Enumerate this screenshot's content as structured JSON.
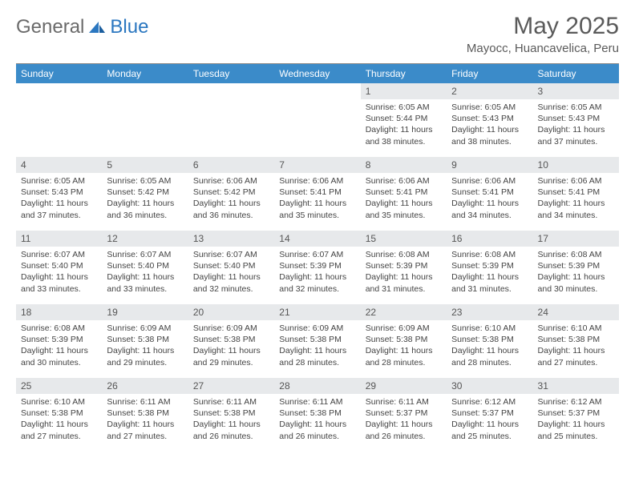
{
  "brand": {
    "part1": "General",
    "part2": "Blue"
  },
  "colors": {
    "header_bg": "#3b8bc9",
    "header_text": "#ffffff",
    "daynum_bg": "#e7e9eb",
    "body_text": "#444444",
    "brand_gray": "#6a6a6a",
    "brand_blue": "#2b77c0"
  },
  "title": "May 2025",
  "location": "Mayocc, Huancavelica, Peru",
  "days_of_week": [
    "Sunday",
    "Monday",
    "Tuesday",
    "Wednesday",
    "Thursday",
    "Friday",
    "Saturday"
  ],
  "weeks": [
    [
      {
        "num": "",
        "lines": []
      },
      {
        "num": "",
        "lines": []
      },
      {
        "num": "",
        "lines": []
      },
      {
        "num": "",
        "lines": []
      },
      {
        "num": "1",
        "lines": [
          "Sunrise: 6:05 AM",
          "Sunset: 5:44 PM",
          "Daylight: 11 hours and 38 minutes."
        ]
      },
      {
        "num": "2",
        "lines": [
          "Sunrise: 6:05 AM",
          "Sunset: 5:43 PM",
          "Daylight: 11 hours and 38 minutes."
        ]
      },
      {
        "num": "3",
        "lines": [
          "Sunrise: 6:05 AM",
          "Sunset: 5:43 PM",
          "Daylight: 11 hours and 37 minutes."
        ]
      }
    ],
    [
      {
        "num": "4",
        "lines": [
          "Sunrise: 6:05 AM",
          "Sunset: 5:43 PM",
          "Daylight: 11 hours and 37 minutes."
        ]
      },
      {
        "num": "5",
        "lines": [
          "Sunrise: 6:05 AM",
          "Sunset: 5:42 PM",
          "Daylight: 11 hours and 36 minutes."
        ]
      },
      {
        "num": "6",
        "lines": [
          "Sunrise: 6:06 AM",
          "Sunset: 5:42 PM",
          "Daylight: 11 hours and 36 minutes."
        ]
      },
      {
        "num": "7",
        "lines": [
          "Sunrise: 6:06 AM",
          "Sunset: 5:41 PM",
          "Daylight: 11 hours and 35 minutes."
        ]
      },
      {
        "num": "8",
        "lines": [
          "Sunrise: 6:06 AM",
          "Sunset: 5:41 PM",
          "Daylight: 11 hours and 35 minutes."
        ]
      },
      {
        "num": "9",
        "lines": [
          "Sunrise: 6:06 AM",
          "Sunset: 5:41 PM",
          "Daylight: 11 hours and 34 minutes."
        ]
      },
      {
        "num": "10",
        "lines": [
          "Sunrise: 6:06 AM",
          "Sunset: 5:41 PM",
          "Daylight: 11 hours and 34 minutes."
        ]
      }
    ],
    [
      {
        "num": "11",
        "lines": [
          "Sunrise: 6:07 AM",
          "Sunset: 5:40 PM",
          "Daylight: 11 hours and 33 minutes."
        ]
      },
      {
        "num": "12",
        "lines": [
          "Sunrise: 6:07 AM",
          "Sunset: 5:40 PM",
          "Daylight: 11 hours and 33 minutes."
        ]
      },
      {
        "num": "13",
        "lines": [
          "Sunrise: 6:07 AM",
          "Sunset: 5:40 PM",
          "Daylight: 11 hours and 32 minutes."
        ]
      },
      {
        "num": "14",
        "lines": [
          "Sunrise: 6:07 AM",
          "Sunset: 5:39 PM",
          "Daylight: 11 hours and 32 minutes."
        ]
      },
      {
        "num": "15",
        "lines": [
          "Sunrise: 6:08 AM",
          "Sunset: 5:39 PM",
          "Daylight: 11 hours and 31 minutes."
        ]
      },
      {
        "num": "16",
        "lines": [
          "Sunrise: 6:08 AM",
          "Sunset: 5:39 PM",
          "Daylight: 11 hours and 31 minutes."
        ]
      },
      {
        "num": "17",
        "lines": [
          "Sunrise: 6:08 AM",
          "Sunset: 5:39 PM",
          "Daylight: 11 hours and 30 minutes."
        ]
      }
    ],
    [
      {
        "num": "18",
        "lines": [
          "Sunrise: 6:08 AM",
          "Sunset: 5:39 PM",
          "Daylight: 11 hours and 30 minutes."
        ]
      },
      {
        "num": "19",
        "lines": [
          "Sunrise: 6:09 AM",
          "Sunset: 5:38 PM",
          "Daylight: 11 hours and 29 minutes."
        ]
      },
      {
        "num": "20",
        "lines": [
          "Sunrise: 6:09 AM",
          "Sunset: 5:38 PM",
          "Daylight: 11 hours and 29 minutes."
        ]
      },
      {
        "num": "21",
        "lines": [
          "Sunrise: 6:09 AM",
          "Sunset: 5:38 PM",
          "Daylight: 11 hours and 28 minutes."
        ]
      },
      {
        "num": "22",
        "lines": [
          "Sunrise: 6:09 AM",
          "Sunset: 5:38 PM",
          "Daylight: 11 hours and 28 minutes."
        ]
      },
      {
        "num": "23",
        "lines": [
          "Sunrise: 6:10 AM",
          "Sunset: 5:38 PM",
          "Daylight: 11 hours and 28 minutes."
        ]
      },
      {
        "num": "24",
        "lines": [
          "Sunrise: 6:10 AM",
          "Sunset: 5:38 PM",
          "Daylight: 11 hours and 27 minutes."
        ]
      }
    ],
    [
      {
        "num": "25",
        "lines": [
          "Sunrise: 6:10 AM",
          "Sunset: 5:38 PM",
          "Daylight: 11 hours and 27 minutes."
        ]
      },
      {
        "num": "26",
        "lines": [
          "Sunrise: 6:11 AM",
          "Sunset: 5:38 PM",
          "Daylight: 11 hours and 27 minutes."
        ]
      },
      {
        "num": "27",
        "lines": [
          "Sunrise: 6:11 AM",
          "Sunset: 5:38 PM",
          "Daylight: 11 hours and 26 minutes."
        ]
      },
      {
        "num": "28",
        "lines": [
          "Sunrise: 6:11 AM",
          "Sunset: 5:38 PM",
          "Daylight: 11 hours and 26 minutes."
        ]
      },
      {
        "num": "29",
        "lines": [
          "Sunrise: 6:11 AM",
          "Sunset: 5:37 PM",
          "Daylight: 11 hours and 26 minutes."
        ]
      },
      {
        "num": "30",
        "lines": [
          "Sunrise: 6:12 AM",
          "Sunset: 5:37 PM",
          "Daylight: 11 hours and 25 minutes."
        ]
      },
      {
        "num": "31",
        "lines": [
          "Sunrise: 6:12 AM",
          "Sunset: 5:37 PM",
          "Daylight: 11 hours and 25 minutes."
        ]
      }
    ]
  ]
}
